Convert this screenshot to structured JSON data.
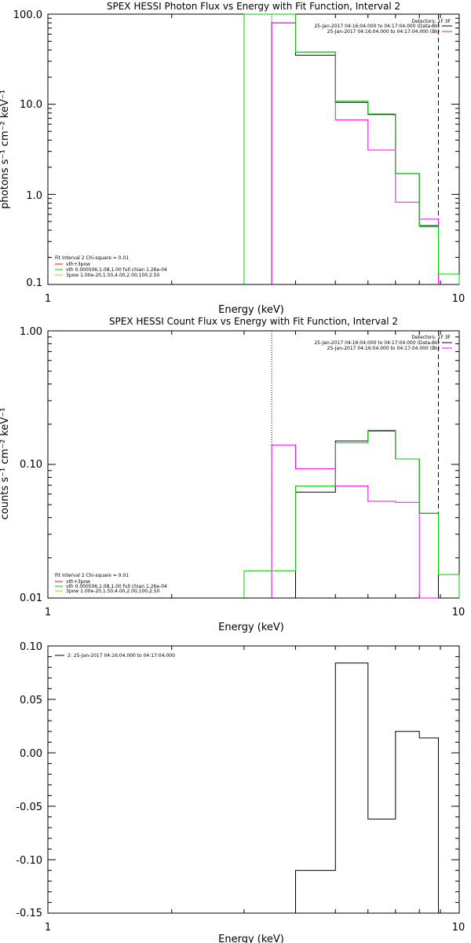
{
  "chart_data": [
    {
      "type": "line",
      "title": "SPEX HESSI Photon Flux vs Energy with Fit Function, Interval 2",
      "xlabel": "Energy (keV)",
      "ylabel": "photons s⁻¹ cm⁻² keV⁻¹",
      "xscale": "log",
      "yscale": "log",
      "xlim": [
        1,
        10
      ],
      "ylim": [
        0.1,
        100
      ],
      "xticks": [
        "1",
        "10"
      ],
      "yticks": [
        "0.1",
        "1.0",
        "10.0",
        "100.0"
      ],
      "grid": false,
      "legend_detectors": {
        "title": "Detectors: 1F 3F",
        "entries": [
          {
            "label": "25-Jan-2017 04:16:04.000 to 04:17:04.000 (Data-Bk)",
            "color": "#000000"
          },
          {
            "label": "25-Jan-2017 04:16:04.000 to 04:17:04.000 (Bk)",
            "color": "#ff00ff"
          }
        ]
      },
      "legend_fit": {
        "title": "Fit Interval 2   Chi-square = 0.01",
        "entries": [
          {
            "label": "vth+3pow",
            "color": "#ff0000"
          },
          {
            "label": "vth 0.000506,1.08,1.00   full chian 1.26e-04",
            "color": "#00cc00"
          },
          {
            "label": "3pow 1.00e-20,1.50,4.00,2.00,100,2.50",
            "color": "#e0b000"
          }
        ]
      },
      "vlines": [
        {
          "x": 3.5,
          "style": "dotted",
          "color": "#000000"
        },
        {
          "x": 8.9,
          "style": "dashed",
          "color": "#000000"
        }
      ],
      "series": [
        {
          "name": "25-Jan-2017 04:16:04.000 to 04:17:04.000 (Data-Bk)",
          "color": "#000000",
          "edges": [
            3.5,
            4.0,
            5.0,
            6.0,
            7.0,
            8.0,
            8.9
          ],
          "values": [
            80,
            35,
            10.5,
            7.7,
            1.7,
            0.45
          ]
        },
        {
          "name": "25-Jan-2017 04:16:04.000 to 04:17:04.000 (Bk)",
          "color": "#ff00ff",
          "edges": [
            3.5,
            4.0,
            5.0,
            6.0,
            7.0,
            8.0,
            8.9
          ],
          "values": [
            80,
            38,
            6.7,
            3.1,
            0.82,
            0.53
          ]
        },
        {
          "name": "vth 0.000506,1.08,1.00",
          "color": "#00cc00",
          "edges": [
            3.0,
            3.5,
            4.0,
            5.0,
            6.0,
            7.0,
            8.0,
            8.9,
            10.0
          ],
          "values": [
            100,
            100,
            38,
            10.8,
            7.8,
            1.7,
            0.44,
            0.13
          ]
        }
      ]
    },
    {
      "type": "line",
      "title": "SPEX HESSI Count Flux vs Energy with Fit Function, Interval 2",
      "xlabel": "Energy (keV)",
      "ylabel": "counts s⁻¹ cm⁻² keV⁻¹",
      "xscale": "log",
      "yscale": "log",
      "xlim": [
        1,
        10
      ],
      "ylim": [
        0.01,
        1.0
      ],
      "xticks": [
        "1",
        "10"
      ],
      "yticks": [
        "0.01",
        "0.10",
        "1.00"
      ],
      "grid": false,
      "legend_detectors": {
        "title": "Detectors: 1F 3F",
        "entries": [
          {
            "label": "25-Jan-2017 04:16:04.000 to 04:17:04.000 (Data-Bk)",
            "color": "#000000"
          },
          {
            "label": "25-Jan-2017 04:16:04.000 to 04:17:04.000 (Bk)",
            "color": "#ff00ff"
          }
        ]
      },
      "legend_fit": {
        "title": "Fit Interval 2   Chi-square = 0.01",
        "entries": [
          {
            "label": "vth+3pow",
            "color": "#ff0000"
          },
          {
            "label": "vth 0.000506,1.08,1.00   full chian 1.26e-04",
            "color": "#00cc00"
          },
          {
            "label": "3pow 1.00e-20,1.50,4.00,2.00,100,2.50",
            "color": "#e0b000"
          }
        ]
      },
      "vlines": [
        {
          "x": 3.5,
          "style": "dotted",
          "color": "#000000"
        },
        {
          "x": 8.9,
          "style": "dashed",
          "color": "#000000"
        }
      ],
      "series": [
        {
          "name": "25-Jan-2017 04:16:04.000 to 04:17:04.000 (Data-Bk)",
          "color": "#000000",
          "edges": [
            3.5,
            4.0,
            5.0,
            6.0,
            7.0,
            8.0,
            8.9
          ],
          "values": [
            0.01,
            0.062,
            0.15,
            0.178,
            0.11,
            0.043
          ]
        },
        {
          "name": "25-Jan-2017 04:16:04.000 to 04:17:04.000 (Bk)",
          "color": "#ff00ff",
          "edges": [
            3.5,
            4.0,
            5.0,
            6.0,
            7.0,
            8.0,
            8.9
          ],
          "values": [
            0.14,
            0.093,
            0.069,
            0.053,
            0.052,
            0.01
          ]
        },
        {
          "name": "vth 0.000506,1.08,1.00",
          "color": "#00cc00",
          "edges": [
            3.0,
            3.5,
            4.0,
            5.0,
            6.0,
            7.0,
            8.0,
            8.9,
            10.0
          ],
          "values": [
            0.016,
            0.016,
            0.069,
            0.145,
            0.18,
            0.11,
            0.043,
            0.015
          ]
        }
      ]
    },
    {
      "type": "line",
      "title": "",
      "xlabel": "Energy (keV)",
      "ylabel": "",
      "xscale": "log",
      "yscale": "linear",
      "xlim": [
        1,
        10
      ],
      "ylim": [
        -0.15,
        0.1
      ],
      "xticks": [
        "1",
        "10"
      ],
      "yticks": [
        "0.10",
        "0.05",
        "0.00",
        "-0.05",
        "-0.10",
        "-0.15"
      ],
      "grid": false,
      "legend_resid": {
        "entries": [
          {
            "label": "2: 25-Jan-2017 04:16:04.000 to 04:17:04.000",
            "color": "#000000"
          }
        ]
      },
      "series": [
        {
          "name": "2: 25-Jan-2017 04:16:04.000 to 04:17:04.000",
          "color": "#000000",
          "edges": [
            3.5,
            4.0,
            5.0,
            6.0,
            7.0,
            8.0,
            8.9
          ],
          "values": [
            -0.15,
            -0.11,
            0.084,
            -0.062,
            0.02,
            0.014
          ]
        }
      ]
    }
  ]
}
